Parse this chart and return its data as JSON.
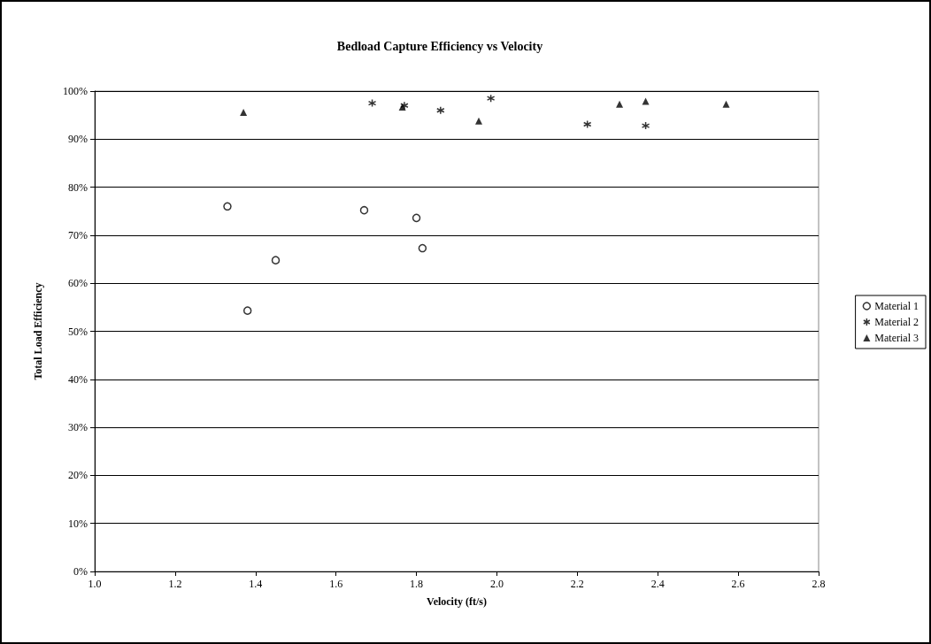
{
  "chart_data": {
    "type": "scatter",
    "title": "Bedload Capture Efficiency vs Velocity",
    "xlabel": "Velocity (ft/s)",
    "ylabel": "Total Load Efficiency",
    "xlim": [
      1.0,
      2.8
    ],
    "xticks": [
      {
        "value": 1.0,
        "label": "1.0"
      },
      {
        "value": 1.2,
        "label": "1.2"
      },
      {
        "value": 1.4,
        "label": "1.4"
      },
      {
        "value": 1.6,
        "label": "1.6"
      },
      {
        "value": 1.8,
        "label": "1.8"
      },
      {
        "value": 2.0,
        "label": "2.0"
      },
      {
        "value": 2.2,
        "label": "2.2"
      },
      {
        "value": 2.4,
        "label": "2.4"
      },
      {
        "value": 2.6,
        "label": "2.6"
      },
      {
        "value": 2.8,
        "label": "2.8"
      }
    ],
    "ylim": [
      0,
      100
    ],
    "yticks": [
      {
        "value": 0,
        "label": "0%"
      },
      {
        "value": 10,
        "label": "10%"
      },
      {
        "value": 20,
        "label": "20%"
      },
      {
        "value": 30,
        "label": "30%"
      },
      {
        "value": 40,
        "label": "40%"
      },
      {
        "value": 50,
        "label": "50%"
      },
      {
        "value": 60,
        "label": "60%"
      },
      {
        "value": 70,
        "label": "70%"
      },
      {
        "value": 80,
        "label": "80%"
      },
      {
        "value": 90,
        "label": "90%"
      },
      {
        "value": 100,
        "label": "100%"
      }
    ],
    "grid": "y",
    "legend": "right",
    "series": [
      {
        "name": "Material 1",
        "color": "#000000",
        "marker": "circle",
        "x": [
          1.33,
          1.38,
          1.45,
          1.67,
          1.8,
          1.815
        ],
        "values": [
          76,
          54.3,
          64.8,
          75.2,
          73.6,
          67.3
        ]
      },
      {
        "name": "Material 2",
        "color": "#000000",
        "marker": "cross",
        "x": [
          1.69,
          1.77,
          1.86,
          1.985,
          2.225,
          2.37
        ],
        "values": [
          97.5,
          97,
          96,
          98.5,
          93.1,
          92.8
        ]
      },
      {
        "name": "Material 3",
        "color": "#000000",
        "marker": "triangle",
        "x": [
          1.37,
          1.765,
          1.955,
          2.305,
          2.37,
          2.57
        ],
        "values": [
          95.6,
          96.7,
          93.8,
          97.3,
          97.9,
          97.3
        ]
      }
    ]
  }
}
